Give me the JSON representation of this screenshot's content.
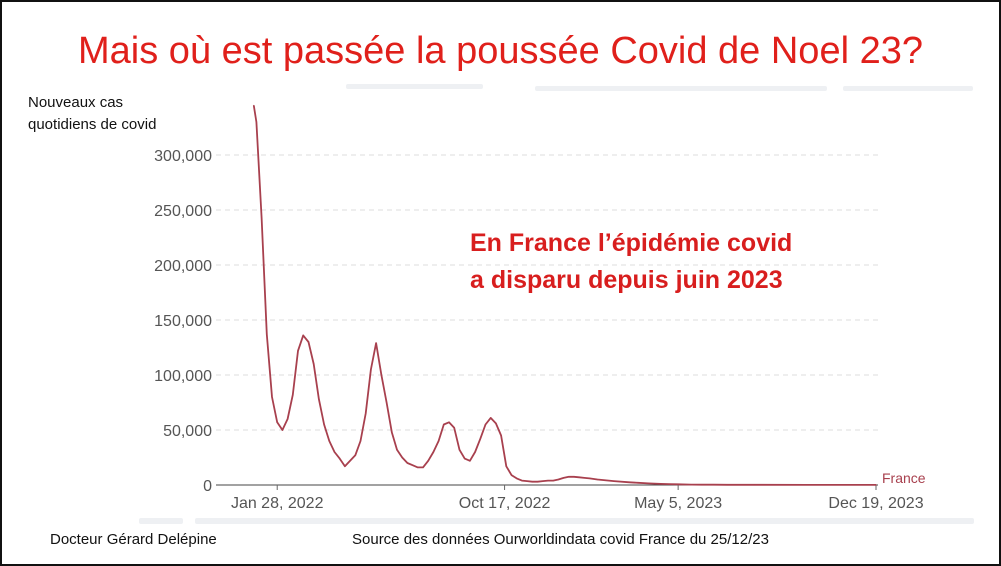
{
  "title": "Mais où est passée la poussée Covid de Noel 23?",
  "ylabel_line1": "Nouveaux cas",
  "ylabel_line2": "quotidiens de covid",
  "annotation_line1": "En France l’épidémie covid",
  "annotation_line2": "a disparu depuis juin 2023",
  "footer_author": "Docteur Gérard Delépine",
  "footer_source": "Source des données Ourworldindata covid France du 25/12/23",
  "colors": {
    "title": "#e0201b",
    "annotation": "#d81e1e",
    "series": "#a8404e",
    "grid": "#dddddd",
    "axis_text": "#555555"
  },
  "chart_data": {
    "type": "line",
    "title": "Mais où est passée la poussée Covid de Noel 23?",
    "ylabel": "Nouveaux cas quotidiens de covid",
    "xlabel": "",
    "ylim": [
      0,
      330000
    ],
    "yticks": [
      0,
      50000,
      100000,
      150000,
      200000,
      250000,
      300000
    ],
    "ytick_labels": [
      "0",
      "50,000",
      "100,000",
      "150,000",
      "200,000",
      "250,000",
      "300,000"
    ],
    "xticks": [
      "2022-01-28",
      "2022-10-17",
      "2023-05-05",
      "2023-12-19"
    ],
    "xtick_labels": [
      "Jan 28, 2022",
      "Oct 17, 2022",
      "May 5, 2023",
      "Dec 19, 2023"
    ],
    "grid": true,
    "series": [
      {
        "name": "France",
        "x": [
          "2022-01-01",
          "2022-01-04",
          "2022-01-10",
          "2022-01-16",
          "2022-01-22",
          "2022-01-28",
          "2022-02-03",
          "2022-02-09",
          "2022-02-15",
          "2022-02-21",
          "2022-02-27",
          "2022-03-05",
          "2022-03-11",
          "2022-03-17",
          "2022-03-23",
          "2022-03-29",
          "2022-04-04",
          "2022-04-10",
          "2022-04-16",
          "2022-04-22",
          "2022-04-28",
          "2022-05-04",
          "2022-05-10",
          "2022-05-16",
          "2022-05-22",
          "2022-05-28",
          "2022-06-03",
          "2022-06-09",
          "2022-06-15",
          "2022-06-21",
          "2022-06-27",
          "2022-07-03",
          "2022-07-09",
          "2022-07-15",
          "2022-07-21",
          "2022-07-27",
          "2022-08-02",
          "2022-08-08",
          "2022-08-14",
          "2022-08-20",
          "2022-08-26",
          "2022-09-01",
          "2022-09-07",
          "2022-09-13",
          "2022-09-19",
          "2022-09-25",
          "2022-10-01",
          "2022-10-07",
          "2022-10-13",
          "2022-10-19",
          "2022-10-25",
          "2022-10-31",
          "2022-11-06",
          "2022-11-12",
          "2022-11-18",
          "2022-11-24",
          "2022-11-30",
          "2022-12-06",
          "2022-12-12",
          "2022-12-18",
          "2022-12-24",
          "2022-12-30",
          "2023-01-05",
          "2023-01-11",
          "2023-01-17",
          "2023-01-23",
          "2023-02-01",
          "2023-02-20",
          "2023-03-10",
          "2023-03-20",
          "2023-04-01",
          "2023-04-15",
          "2023-04-25",
          "2023-05-05",
          "2023-05-20",
          "2023-06-01",
          "2023-06-15",
          "2023-07-01",
          "2023-08-01",
          "2023-10-01",
          "2023-12-19",
          "2024-01-05"
        ],
        "values": [
          345000,
          330000,
          243000,
          137000,
          80000,
          57000,
          50000,
          60000,
          82000,
          122000,
          136000,
          130000,
          110000,
          78000,
          55000,
          40000,
          30000,
          24000,
          17000,
          22000,
          27000,
          40000,
          65000,
          105000,
          129000,
          100000,
          75000,
          48000,
          32000,
          25000,
          20000,
          18000,
          16000,
          16000,
          22000,
          30000,
          40000,
          55000,
          57000,
          52000,
          32000,
          24000,
          22000,
          30000,
          42000,
          55000,
          61000,
          56000,
          45000,
          17000,
          9000,
          6000,
          4000,
          3500,
          3000,
          3000,
          3500,
          4000,
          4000,
          5000,
          6500,
          7500,
          7500,
          7000,
          6500,
          6000,
          5000,
          3500,
          2500,
          2000,
          1500,
          1000,
          800,
          600,
          400,
          300,
          250,
          200,
          150,
          100,
          100,
          100
        ]
      }
    ]
  }
}
